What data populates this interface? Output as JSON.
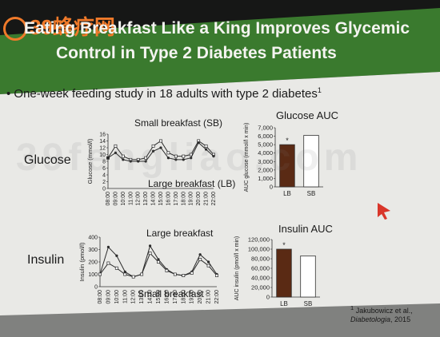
{
  "watermark": {
    "logo_text": "39蜂疗网",
    "background_text": "39fengliao.com"
  },
  "slide": {
    "title_line1": "Eating Breakfast Like a King Improves Glycemic",
    "title_line2": "Control in Type 2 Diabetes Patients",
    "bullet": "One-week feeding study in 18 adults with type 2 diabetes",
    "bullet_sup": "1",
    "row_glucose": "Glucose",
    "row_insulin": "Insulin",
    "ann_small_breakfast_glucose": "Small breakfast (SB)",
    "ann_large_breakfast_glucose": "Large breakfast (LB)",
    "ann_large_breakfast_insulin": "Large breakfast",
    "ann_small_breakfast_insulin": "Small breakfast",
    "glucose_auc_title": "Glucose AUC",
    "insulin_auc_title": "Insulin AUC",
    "reference_line1": "Jakubowicz et al.,",
    "reference_sup": "1",
    "reference_line2a": "Diabetologia",
    "reference_line2b": ", 2015",
    "colors": {
      "banner": "#3a7a2e",
      "slide": "#e9e9e6",
      "lb_bar": "#5a2a14",
      "cursor": "#d9362a",
      "logo": "#f07a2a"
    }
  },
  "chart_data": [
    {
      "type": "line",
      "ylabel": "Glucose (mmol/l)",
      "ylim": [
        0,
        16
      ],
      "yticks": [
        0,
        2,
        4,
        6,
        8,
        10,
        12,
        14,
        16
      ],
      "x": [
        "08:00",
        "09:00",
        "10:00",
        "11:00",
        "12:00",
        "13:00",
        "14:00",
        "15:00",
        "16:00",
        "17:00",
        "18:00",
        "19:00",
        "20:00",
        "21:00",
        "22:00"
      ],
      "series": [
        {
          "name": "Small breakfast (SB)",
          "values": [
            9.0,
            12.5,
            9.5,
            8.5,
            8.5,
            9.0,
            12.5,
            14.0,
            10.5,
            9.5,
            9.5,
            10.0,
            14.0,
            12.5,
            10.0
          ]
        },
        {
          "name": "Large breakfast (LB)",
          "values": [
            9.0,
            10.5,
            8.5,
            8.0,
            8.0,
            8.0,
            11.0,
            12.0,
            9.0,
            8.5,
            8.5,
            9.0,
            13.5,
            11.5,
            9.5
          ]
        }
      ]
    },
    {
      "type": "bar",
      "title": "Glucose AUC",
      "ylabel": "AUC glucose (mmol/l x min)",
      "categories": [
        "LB",
        "SB"
      ],
      "values": [
        5000,
        6100
      ],
      "ylim": [
        0,
        7000
      ],
      "yticks": [
        0,
        1000,
        2000,
        3000,
        4000,
        5000,
        6000,
        7000
      ],
      "annotations": [
        {
          "category": "LB",
          "text": "*"
        }
      ]
    },
    {
      "type": "line",
      "ylabel": "Insulin (pmol/l)",
      "ylim": [
        0,
        400
      ],
      "yticks": [
        0,
        100,
        200,
        300,
        400
      ],
      "x": [
        "08:00",
        "09:00",
        "10:00",
        "11:00",
        "12:00",
        "13:00",
        "14:00",
        "15:00",
        "16:00",
        "17:00",
        "18:00",
        "19:00",
        "20:00",
        "21:00",
        "22:00"
      ],
      "series": [
        {
          "name": "Large breakfast",
          "values": [
            100,
            320,
            250,
            120,
            80,
            100,
            330,
            220,
            140,
            100,
            90,
            120,
            260,
            200,
            100
          ]
        },
        {
          "name": "Small breakfast",
          "values": [
            100,
            190,
            150,
            100,
            80,
            100,
            270,
            200,
            130,
            100,
            90,
            110,
            220,
            170,
            90
          ]
        }
      ]
    },
    {
      "type": "bar",
      "title": "Insulin AUC",
      "ylabel": "AUC insulin (pmol/l x min)",
      "categories": [
        "LB",
        "SB"
      ],
      "values": [
        100000,
        86000
      ],
      "ylim": [
        0,
        120000
      ],
      "yticks": [
        0,
        20000,
        40000,
        60000,
        80000,
        100000,
        120000
      ],
      "annotations": [
        {
          "category": "LB",
          "text": "*"
        }
      ]
    }
  ]
}
